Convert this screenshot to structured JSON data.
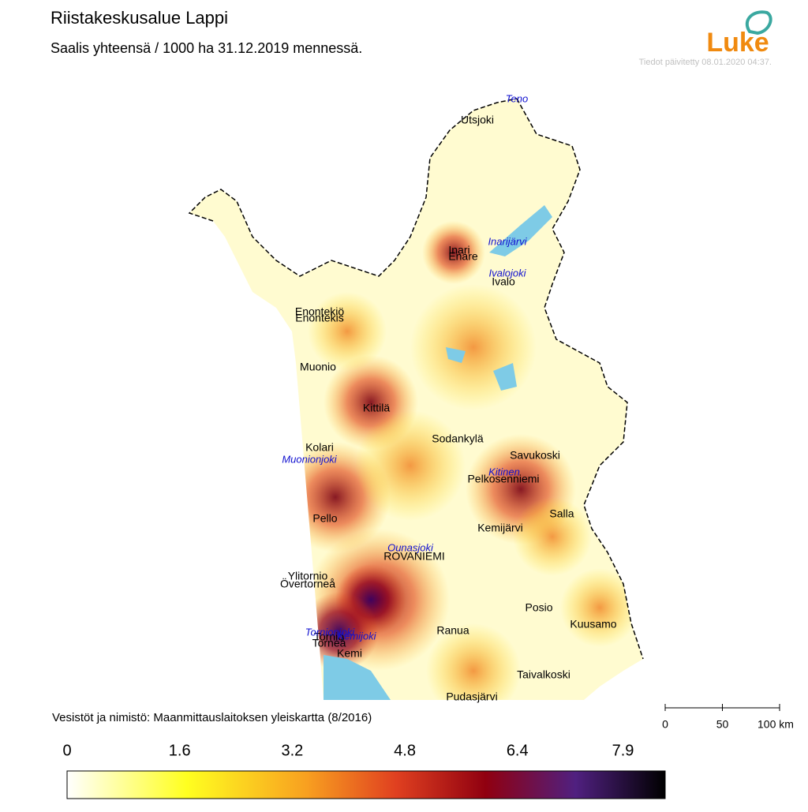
{
  "header": {
    "title": "Riistakeskusalue Lappi",
    "subtitle": "Saalis yhteensä / 1000 ha 31.12.2019 mennessä.",
    "updated": "Tiedot päivitetty 08.01.2020 04:37.",
    "logo": "Luke"
  },
  "map": {
    "places": [
      "Utsjoki",
      "Inari",
      "Enare",
      "Ivalo",
      "Enontekiö",
      "Enontekis",
      "Muonio",
      "Kittilä",
      "Sodankylä",
      "Kolari",
      "Savukoski",
      "Pelkosenniemi",
      "Pello",
      "Salla",
      "Kemijärvi",
      "ROVANIEMI",
      "Ylitornio",
      "Övertorneå",
      "Posio",
      "Kuusamo",
      "Ranua",
      "Tornio",
      "Torneå",
      "Kemi",
      "Taivalkoski",
      "Pudasjärvi"
    ],
    "waters": [
      "Teno",
      "Inarijärvi",
      "Ivalojoki",
      "Muonionjoki",
      "Kitinen",
      "Ounasjoki",
      "Tornionjoki",
      "Kemijoki"
    ]
  },
  "credit": "Vesistöt ja nimistö: Maanmittauslaitoksen yleiskartta (8/2016)",
  "scale_bar": {
    "ticks": [
      0,
      50,
      {
        "value": 100,
        "label": "100 km"
      }
    ]
  },
  "legend": {
    "range": [
      0,
      8.5
    ],
    "ticks": [
      0,
      1.6,
      3.2,
      4.8,
      6.4,
      7.9
    ]
  }
}
